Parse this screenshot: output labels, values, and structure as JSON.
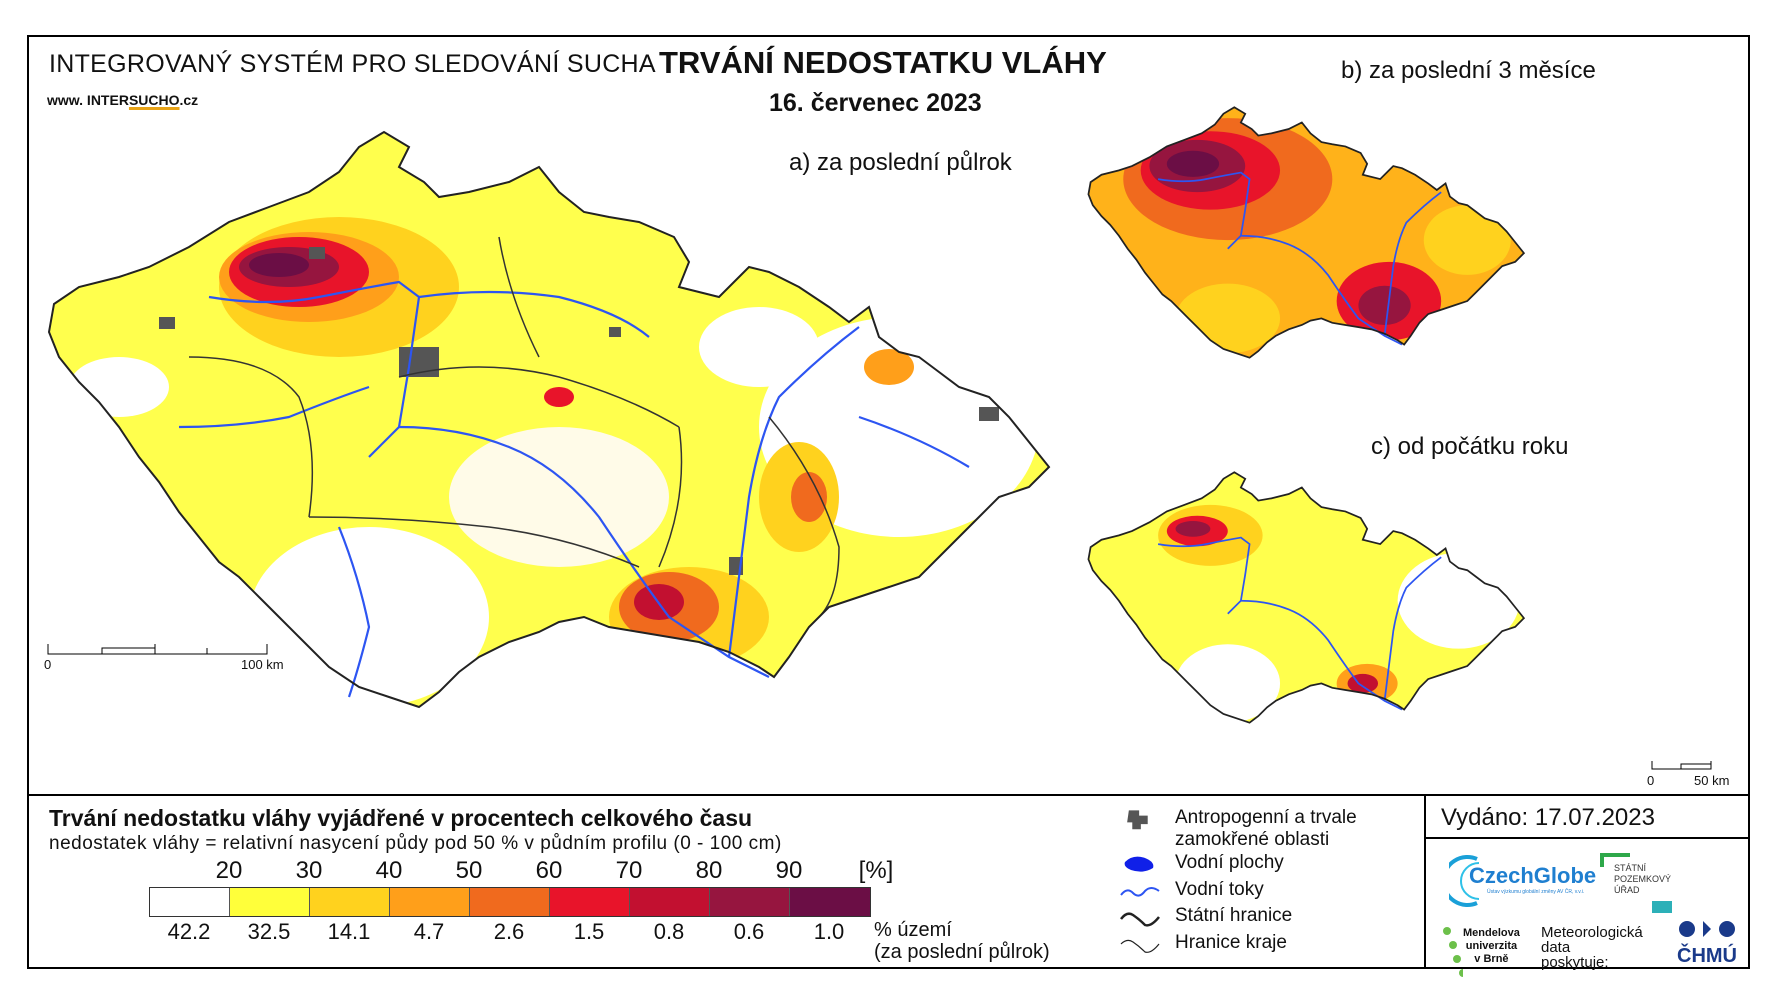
{
  "header": {
    "system_title": "INTEGROVANÝ SYSTÉM PRO SLEDOVÁNÍ SUCHA",
    "website_prefix": "www. INTER",
    "website_accent": "SUCHO",
    "website_suffix": ".cz",
    "main_title": "TRVÁNÍ NEDOSTATKU VLÁHY",
    "date": "16. červenec 2023"
  },
  "maps": {
    "a_label": "a) za poslední půlrok",
    "b_label": "b) za poslední 3 měsíce",
    "c_label": "c) od počátku roku",
    "a_scale": {
      "start": "0",
      "end": "100 km"
    },
    "c_scale": {
      "start": "0",
      "end": "50 km"
    }
  },
  "legend": {
    "title": "Trvání nedostatku vláhy vyjádřené v procentech celkového času",
    "subtitle": "nedostatek vláhy = relativní nasycení půdy pod 50 % v půdním profilu (0 - 100 cm)",
    "ticks": [
      "20",
      "30",
      "40",
      "50",
      "60",
      "70",
      "80",
      "90"
    ],
    "unit": "[%]",
    "classes": [
      {
        "color": "#ffffff",
        "share": "42.2"
      },
      {
        "color": "#ffff3a",
        "share": "32.5"
      },
      {
        "color": "#ffd21e",
        "share": "14.1"
      },
      {
        "color": "#ff9f1a",
        "share": "4.7"
      },
      {
        "color": "#f06a1e",
        "share": "2.6"
      },
      {
        "color": "#e8142a",
        "share": "1.5"
      },
      {
        "color": "#c21030",
        "share": "0.8"
      },
      {
        "color": "#96153f",
        "share": "0.6"
      },
      {
        "color": "#6b0e45",
        "share": "1.0"
      }
    ],
    "share_unit_line1": "% území",
    "share_unit_line2": "(za poslední půlrok)"
  },
  "map_legend": {
    "urban_line1": "Antropogenní a trvale",
    "urban_line2": "zamokřené oblasti",
    "water_bodies": "Vodní plochy",
    "rivers": "Vodní toky",
    "state_border": "Státní hranice",
    "region_border": "Hranice kraje"
  },
  "issued": "Vydáno: 17.07.2023",
  "logos": {
    "czechglobe": "CzechGlobe",
    "czechglobe_sub": "Ústav výzkumu globální změny AV ČR, v.v.i.",
    "spu_line1": "STÁTNÍ",
    "spu_line2": "POZEMKOVÝ",
    "spu_line3": "ÚŘAD",
    "mendel_line1": "Mendelova",
    "mendel_line2": "univerzita",
    "mendel_line3": "v Brně",
    "meteo_line1": "Meteorologická",
    "meteo_line2": "data",
    "meteo_line3": "poskytuje:",
    "chmu": "ČHMÚ"
  },
  "colors": {
    "river": "#2d55f2",
    "border": "#333333",
    "urban": "#555555"
  }
}
